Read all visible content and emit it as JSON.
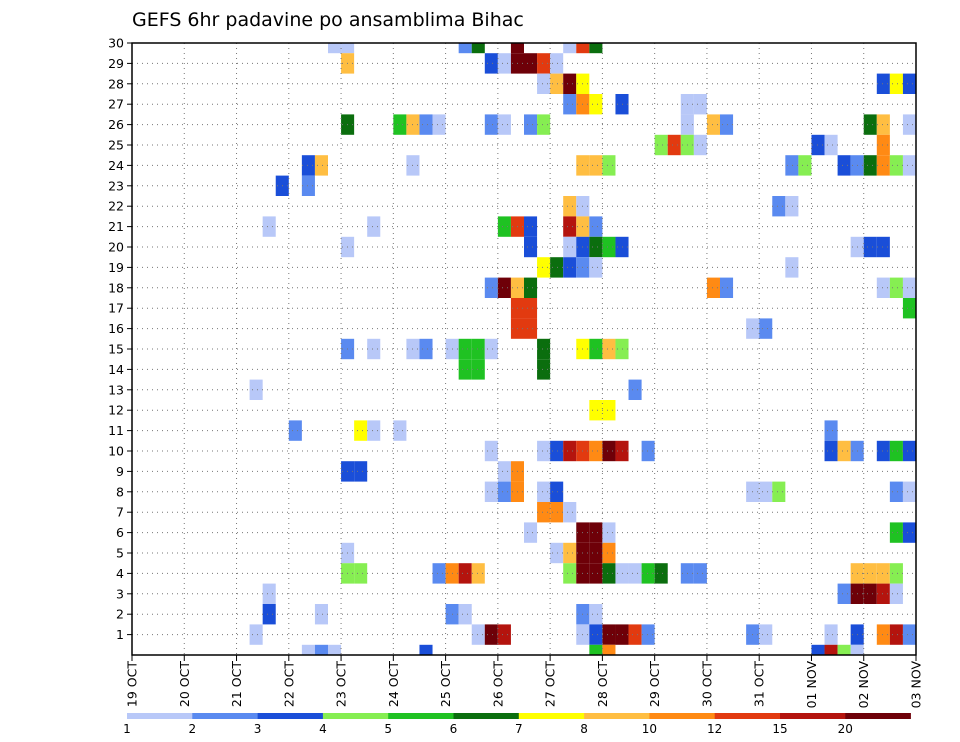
{
  "chart_data": {
    "type": "heatmap",
    "title": "GEFS 6hr padavine po ansamblima Bihac",
    "x_ticks": [
      "19 OCT",
      "20 OCT",
      "21 OCT",
      "22 OCT",
      "23 OCT",
      "24 OCT",
      "25 OCT",
      "26 OCT",
      "27 OCT",
      "28 OCT",
      "29 OCT",
      "30 OCT",
      "31 OCT",
      "01 NOV",
      "02 NOV",
      "03 NOV"
    ],
    "y_ticks": [
      1,
      2,
      3,
      4,
      5,
      6,
      7,
      8,
      9,
      10,
      11,
      12,
      13,
      14,
      15,
      16,
      17,
      18,
      19,
      20,
      21,
      22,
      23,
      24,
      25,
      26,
      27,
      28,
      29,
      30
    ],
    "x_unit": "6-hour step (4 steps per day), index 0 = 19 OCT 00z",
    "y_label": "",
    "xlim": [
      0,
      60
    ],
    "ylim": [
      0,
      30
    ],
    "grid": true,
    "legend": {
      "position": "bottom",
      "breaks": [
        "1",
        "2",
        "3",
        "4",
        "5",
        "6",
        "7",
        "8",
        "10",
        "12",
        "15",
        "20"
      ],
      "colors": [
        "#b8c8f8",
        "#5a8af0",
        "#1a4ed8",
        "#86ee52",
        "#1fc222",
        "#0b6e0e",
        "#ffff00",
        "#ffbe42",
        "#ff8a14",
        "#e23a10",
        "#b4140e",
        "#6e0008"
      ]
    },
    "cells": [
      {
        "member": 30,
        "t": 15,
        "c": 0
      },
      {
        "member": 30,
        "t": 16,
        "c": 0
      },
      {
        "member": 30,
        "t": 25,
        "c": 1
      },
      {
        "member": 30,
        "t": 26,
        "c": 5
      },
      {
        "member": 30,
        "t": 29,
        "c": 11
      },
      {
        "member": 30,
        "t": 33,
        "c": 0
      },
      {
        "member": 30,
        "t": 34,
        "c": 9
      },
      {
        "member": 30,
        "t": 35,
        "c": 5
      },
      {
        "member": 29,
        "t": 16,
        "c": 7
      },
      {
        "member": 29,
        "t": 27,
        "c": 2
      },
      {
        "member": 29,
        "t": 28,
        "c": 0
      },
      {
        "member": 29,
        "t": 29,
        "c": 11
      },
      {
        "member": 29,
        "t": 30,
        "c": 11
      },
      {
        "member": 29,
        "t": 31,
        "c": 9
      },
      {
        "member": 29,
        "t": 32,
        "c": 0
      },
      {
        "member": 28,
        "t": 31,
        "c": 0
      },
      {
        "member": 28,
        "t": 32,
        "c": 7
      },
      {
        "member": 28,
        "t": 33,
        "c": 11
      },
      {
        "member": 28,
        "t": 34,
        "c": 6
      },
      {
        "member": 28,
        "t": 57,
        "c": 2
      },
      {
        "member": 28,
        "t": 58,
        "c": 6
      },
      {
        "member": 28,
        "t": 59,
        "c": 2
      },
      {
        "member": 27,
        "t": 33,
        "c": 1
      },
      {
        "member": 27,
        "t": 34,
        "c": 8
      },
      {
        "member": 27,
        "t": 35,
        "c": 6
      },
      {
        "member": 27,
        "t": 37,
        "c": 2
      },
      {
        "member": 27,
        "t": 42,
        "c": 0
      },
      {
        "member": 27,
        "t": 43,
        "c": 0
      },
      {
        "member": 26,
        "t": 16,
        "c": 5
      },
      {
        "member": 26,
        "t": 20,
        "c": 4
      },
      {
        "member": 26,
        "t": 21,
        "c": 7
      },
      {
        "member": 26,
        "t": 22,
        "c": 1
      },
      {
        "member": 26,
        "t": 23,
        "c": 0
      },
      {
        "member": 26,
        "t": 27,
        "c": 1
      },
      {
        "member": 26,
        "t": 28,
        "c": 0
      },
      {
        "member": 26,
        "t": 30,
        "c": 1
      },
      {
        "member": 26,
        "t": 31,
        "c": 3
      },
      {
        "member": 26,
        "t": 42,
        "c": 0
      },
      {
        "member": 26,
        "t": 44,
        "c": 7
      },
      {
        "member": 26,
        "t": 45,
        "c": 1
      },
      {
        "member": 26,
        "t": 56,
        "c": 5
      },
      {
        "member": 26,
        "t": 57,
        "c": 7
      },
      {
        "member": 26,
        "t": 59,
        "c": 0
      },
      {
        "member": 25,
        "t": 40,
        "c": 3
      },
      {
        "member": 25,
        "t": 41,
        "c": 9
      },
      {
        "member": 25,
        "t": 42,
        "c": 3
      },
      {
        "member": 25,
        "t": 43,
        "c": 0
      },
      {
        "member": 25,
        "t": 52,
        "c": 2
      },
      {
        "member": 25,
        "t": 53,
        "c": 0
      },
      {
        "member": 25,
        "t": 57,
        "c": 8
      },
      {
        "member": 24,
        "t": 13,
        "c": 2
      },
      {
        "member": 24,
        "t": 14,
        "c": 7
      },
      {
        "member": 24,
        "t": 21,
        "c": 0
      },
      {
        "member": 24,
        "t": 34,
        "c": 7
      },
      {
        "member": 24,
        "t": 35,
        "c": 7
      },
      {
        "member": 24,
        "t": 36,
        "c": 3
      },
      {
        "member": 24,
        "t": 50,
        "c": 1
      },
      {
        "member": 24,
        "t": 51,
        "c": 3
      },
      {
        "member": 24,
        "t": 54,
        "c": 2
      },
      {
        "member": 24,
        "t": 55,
        "c": 1
      },
      {
        "member": 24,
        "t": 56,
        "c": 5
      },
      {
        "member": 24,
        "t": 57,
        "c": 8
      },
      {
        "member": 24,
        "t": 58,
        "c": 3
      },
      {
        "member": 24,
        "t": 59,
        "c": 0
      },
      {
        "member": 23,
        "t": 11,
        "c": 2
      },
      {
        "member": 23,
        "t": 13,
        "c": 1
      },
      {
        "member": 22,
        "t": 33,
        "c": 7
      },
      {
        "member": 22,
        "t": 34,
        "c": 0
      },
      {
        "member": 22,
        "t": 49,
        "c": 1
      },
      {
        "member": 22,
        "t": 50,
        "c": 0
      },
      {
        "member": 21,
        "t": 10,
        "c": 0
      },
      {
        "member": 21,
        "t": 18,
        "c": 0
      },
      {
        "member": 21,
        "t": 28,
        "c": 4
      },
      {
        "member": 21,
        "t": 29,
        "c": 9
      },
      {
        "member": 21,
        "t": 30,
        "c": 2
      },
      {
        "member": 21,
        "t": 33,
        "c": 10
      },
      {
        "member": 21,
        "t": 34,
        "c": 7
      },
      {
        "member": 21,
        "t": 35,
        "c": 1
      },
      {
        "member": 20,
        "t": 16,
        "c": 0
      },
      {
        "member": 20,
        "t": 30,
        "c": 2
      },
      {
        "member": 20,
        "t": 33,
        "c": 0
      },
      {
        "member": 20,
        "t": 34,
        "c": 2
      },
      {
        "member": 20,
        "t": 35,
        "c": 5
      },
      {
        "member": 20,
        "t": 36,
        "c": 4
      },
      {
        "member": 20,
        "t": 37,
        "c": 2
      },
      {
        "member": 20,
        "t": 55,
        "c": 0
      },
      {
        "member": 20,
        "t": 56,
        "c": 2
      },
      {
        "member": 20,
        "t": 57,
        "c": 2
      },
      {
        "member": 19,
        "t": 31,
        "c": 6
      },
      {
        "member": 19,
        "t": 32,
        "c": 5
      },
      {
        "member": 19,
        "t": 33,
        "c": 2
      },
      {
        "member": 19,
        "t": 34,
        "c": 1
      },
      {
        "member": 19,
        "t": 35,
        "c": 0
      },
      {
        "member": 19,
        "t": 50,
        "c": 0
      },
      {
        "member": 18,
        "t": 27,
        "c": 1
      },
      {
        "member": 18,
        "t": 28,
        "c": 11
      },
      {
        "member": 18,
        "t": 29,
        "c": 7
      },
      {
        "member": 18,
        "t": 30,
        "c": 5
      },
      {
        "member": 18,
        "t": 44,
        "c": 8
      },
      {
        "member": 18,
        "t": 45,
        "c": 1
      },
      {
        "member": 18,
        "t": 57,
        "c": 0
      },
      {
        "member": 18,
        "t": 58,
        "c": 3
      },
      {
        "member": 18,
        "t": 59,
        "c": 0
      },
      {
        "member": 17,
        "t": 29,
        "c": 9
      },
      {
        "member": 17,
        "t": 30,
        "c": 9
      },
      {
        "member": 17,
        "t": 59,
        "c": 4
      },
      {
        "member": 16,
        "t": 29,
        "c": 9
      },
      {
        "member": 16,
        "t": 30,
        "c": 9
      },
      {
        "member": 16,
        "t": 47,
        "c": 0
      },
      {
        "member": 16,
        "t": 48,
        "c": 1
      },
      {
        "member": 15,
        "t": 16,
        "c": 1
      },
      {
        "member": 15,
        "t": 18,
        "c": 0
      },
      {
        "member": 15,
        "t": 21,
        "c": 0
      },
      {
        "member": 15,
        "t": 22,
        "c": 1
      },
      {
        "member": 15,
        "t": 24,
        "c": 0
      },
      {
        "member": 15,
        "t": 25,
        "c": 4
      },
      {
        "member": 15,
        "t": 26,
        "c": 4
      },
      {
        "member": 15,
        "t": 27,
        "c": 0
      },
      {
        "member": 15,
        "t": 31,
        "c": 5
      },
      {
        "member": 15,
        "t": 34,
        "c": 6
      },
      {
        "member": 15,
        "t": 35,
        "c": 4
      },
      {
        "member": 15,
        "t": 36,
        "c": 7
      },
      {
        "member": 15,
        "t": 37,
        "c": 3
      },
      {
        "member": 14,
        "t": 25,
        "c": 4
      },
      {
        "member": 14,
        "t": 26,
        "c": 4
      },
      {
        "member": 14,
        "t": 31,
        "c": 5
      },
      {
        "member": 13,
        "t": 9,
        "c": 0
      },
      {
        "member": 13,
        "t": 38,
        "c": 1
      },
      {
        "member": 12,
        "t": 35,
        "c": 6
      },
      {
        "member": 12,
        "t": 36,
        "c": 6
      },
      {
        "member": 11,
        "t": 12,
        "c": 1
      },
      {
        "member": 11,
        "t": 17,
        "c": 6
      },
      {
        "member": 11,
        "t": 18,
        "c": 0
      },
      {
        "member": 11,
        "t": 20,
        "c": 0
      },
      {
        "member": 11,
        "t": 53,
        "c": 1
      },
      {
        "member": 10,
        "t": 27,
        "c": 0
      },
      {
        "member": 10,
        "t": 31,
        "c": 0
      },
      {
        "member": 10,
        "t": 32,
        "c": 2
      },
      {
        "member": 10,
        "t": 33,
        "c": 10
      },
      {
        "member": 10,
        "t": 34,
        "c": 9
      },
      {
        "member": 10,
        "t": 35,
        "c": 8
      },
      {
        "member": 10,
        "t": 36,
        "c": 11
      },
      {
        "member": 10,
        "t": 37,
        "c": 10
      },
      {
        "member": 10,
        "t": 39,
        "c": 1
      },
      {
        "member": 10,
        "t": 53,
        "c": 2
      },
      {
        "member": 10,
        "t": 54,
        "c": 7
      },
      {
        "member": 10,
        "t": 55,
        "c": 1
      },
      {
        "member": 10,
        "t": 57,
        "c": 2
      },
      {
        "member": 10,
        "t": 58,
        "c": 4
      },
      {
        "member": 10,
        "t": 59,
        "c": 2
      },
      {
        "member": 9,
        "t": 16,
        "c": 2
      },
      {
        "member": 9,
        "t": 17,
        "c": 2
      },
      {
        "member": 9,
        "t": 28,
        "c": 0
      },
      {
        "member": 9,
        "t": 29,
        "c": 8
      },
      {
        "member": 8,
        "t": 27,
        "c": 0
      },
      {
        "member": 8,
        "t": 28,
        "c": 1
      },
      {
        "member": 8,
        "t": 29,
        "c": 8
      },
      {
        "member": 8,
        "t": 31,
        "c": 0
      },
      {
        "member": 8,
        "t": 32,
        "c": 2
      },
      {
        "member": 8,
        "t": 47,
        "c": 0
      },
      {
        "member": 8,
        "t": 48,
        "c": 0
      },
      {
        "member": 8,
        "t": 49,
        "c": 3
      },
      {
        "member": 8,
        "t": 58,
        "c": 1
      },
      {
        "member": 8,
        "t": 59,
        "c": 0
      },
      {
        "member": 7,
        "t": 31,
        "c": 8
      },
      {
        "member": 7,
        "t": 32,
        "c": 8
      },
      {
        "member": 7,
        "t": 33,
        "c": 0
      },
      {
        "member": 6,
        "t": 30,
        "c": 0
      },
      {
        "member": 6,
        "t": 34,
        "c": 11
      },
      {
        "member": 6,
        "t": 35,
        "c": 11
      },
      {
        "member": 6,
        "t": 36,
        "c": 0
      },
      {
        "member": 6,
        "t": 58,
        "c": 4
      },
      {
        "member": 6,
        "t": 59,
        "c": 2
      },
      {
        "member": 5,
        "t": 16,
        "c": 0
      },
      {
        "member": 5,
        "t": 32,
        "c": 0
      },
      {
        "member": 5,
        "t": 33,
        "c": 7
      },
      {
        "member": 5,
        "t": 34,
        "c": 11
      },
      {
        "member": 5,
        "t": 35,
        "c": 11
      },
      {
        "member": 5,
        "t": 36,
        "c": 8
      },
      {
        "member": 4,
        "t": 16,
        "c": 3
      },
      {
        "member": 4,
        "t": 17,
        "c": 3
      },
      {
        "member": 4,
        "t": 23,
        "c": 1
      },
      {
        "member": 4,
        "t": 24,
        "c": 8
      },
      {
        "member": 4,
        "t": 25,
        "c": 10
      },
      {
        "member": 4,
        "t": 26,
        "c": 7
      },
      {
        "member": 4,
        "t": 33,
        "c": 3
      },
      {
        "member": 4,
        "t": 34,
        "c": 11
      },
      {
        "member": 4,
        "t": 35,
        "c": 11
      },
      {
        "member": 4,
        "t": 36,
        "c": 5
      },
      {
        "member": 4,
        "t": 37,
        "c": 0
      },
      {
        "member": 4,
        "t": 38,
        "c": 0
      },
      {
        "member": 4,
        "t": 39,
        "c": 4
      },
      {
        "member": 4,
        "t": 40,
        "c": 5
      },
      {
        "member": 4,
        "t": 42,
        "c": 1
      },
      {
        "member": 4,
        "t": 43,
        "c": 1
      },
      {
        "member": 4,
        "t": 55,
        "c": 7
      },
      {
        "member": 4,
        "t": 56,
        "c": 7
      },
      {
        "member": 4,
        "t": 57,
        "c": 7
      },
      {
        "member": 4,
        "t": 58,
        "c": 3
      },
      {
        "member": 3,
        "t": 10,
        "c": 0
      },
      {
        "member": 3,
        "t": 54,
        "c": 1
      },
      {
        "member": 3,
        "t": 55,
        "c": 11
      },
      {
        "member": 3,
        "t": 56,
        "c": 11
      },
      {
        "member": 3,
        "t": 57,
        "c": 10
      },
      {
        "member": 3,
        "t": 58,
        "c": 0
      },
      {
        "member": 2,
        "t": 10,
        "c": 2
      },
      {
        "member": 2,
        "t": 14,
        "c": 0
      },
      {
        "member": 2,
        "t": 24,
        "c": 1
      },
      {
        "member": 2,
        "t": 25,
        "c": 0
      },
      {
        "member": 2,
        "t": 34,
        "c": 1
      },
      {
        "member": 2,
        "t": 35,
        "c": 0
      },
      {
        "member": 1,
        "t": 9,
        "c": 0
      },
      {
        "member": 1,
        "t": 26,
        "c": 0
      },
      {
        "member": 1,
        "t": 27,
        "c": 11
      },
      {
        "member": 1,
        "t": 28,
        "c": 10
      },
      {
        "member": 1,
        "t": 34,
        "c": 0
      },
      {
        "member": 1,
        "t": 35,
        "c": 2
      },
      {
        "member": 1,
        "t": 36,
        "c": 11
      },
      {
        "member": 1,
        "t": 37,
        "c": 11
      },
      {
        "member": 1,
        "t": 38,
        "c": 9
      },
      {
        "member": 1,
        "t": 39,
        "c": 1
      },
      {
        "member": 1,
        "t": 47,
        "c": 1
      },
      {
        "member": 1,
        "t": 48,
        "c": 0
      },
      {
        "member": 1,
        "t": 53,
        "c": 0
      },
      {
        "member": 1,
        "t": 55,
        "c": 2
      },
      {
        "member": 1,
        "t": 57,
        "c": 8
      },
      {
        "member": 1,
        "t": 58,
        "c": 10
      },
      {
        "member": 1,
        "t": 59,
        "c": 1
      },
      {
        "member": 0,
        "t": 13,
        "c": 0
      },
      {
        "member": 0,
        "t": 14,
        "c": 1
      },
      {
        "member": 0,
        "t": 15,
        "c": 0
      },
      {
        "member": 0,
        "t": 22,
        "c": 2
      },
      {
        "member": 0,
        "t": 35,
        "c": 4
      },
      {
        "member": 0,
        "t": 36,
        "c": 8
      },
      {
        "member": 0,
        "t": 52,
        "c": 2
      },
      {
        "member": 0,
        "t": 53,
        "c": 10
      },
      {
        "member": 0,
        "t": 54,
        "c": 3
      },
      {
        "member": 0,
        "t": 55,
        "c": 0
      }
    ]
  }
}
